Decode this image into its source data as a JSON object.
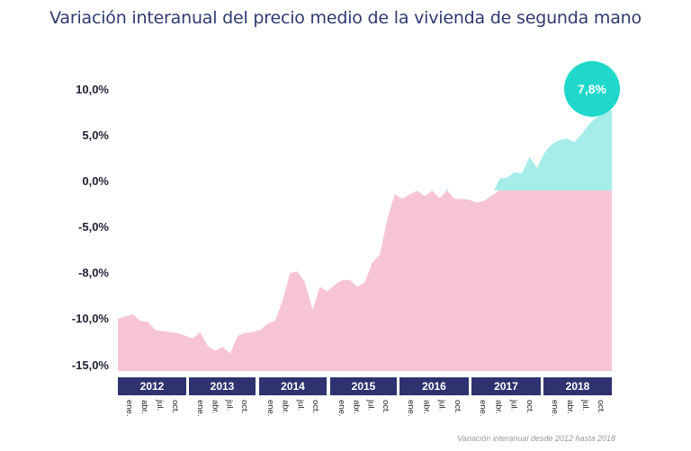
{
  "title": "Variación interanual del precio medio de la vivienda de segunda mano",
  "footnote": "Variación interanual desde 2012 hasta 2018",
  "badge": "7,8%",
  "colors": {
    "negative_area": "#f7c4d6",
    "positive_area": "#a6ece8",
    "badge": "#1fd8cb",
    "year_bar": "#2e3370",
    "title": "#2e3a6e"
  },
  "chart_data": {
    "type": "area",
    "title": "Variación interanual del precio medio de la vivienda de segunda mano",
    "y_tick_labels": [
      "10,0%",
      "5,0%",
      "0,0%",
      "-5,0%",
      "-8,0%",
      "-10,0%",
      "-15,0%"
    ],
    "y_tick_values": [
      10,
      5,
      0,
      -5,
      -8,
      -10,
      -15
    ],
    "years": [
      "2012",
      "2013",
      "2014",
      "2015",
      "2016",
      "2017",
      "2018"
    ],
    "month_labels": [
      "ene.",
      "abr.",
      "jul.",
      "oct."
    ],
    "series": [
      {
        "values": [
          -10.0,
          -9.9,
          -9.8,
          -10.2,
          -10.3,
          -11.2,
          -11.3,
          -11.4,
          -11.5,
          -11.8,
          -12.1,
          -11.4,
          -12.9,
          -13.4,
          -13.0,
          -13.7,
          -11.8,
          -11.5,
          -11.4,
          -11.2,
          -10.5,
          -10.2,
          -9.2,
          -8.0,
          -7.9,
          -8.4,
          -9.6,
          -8.6,
          -8.8,
          -8.5,
          -8.3,
          -8.3,
          -8.6,
          -8.4,
          -7.3,
          -6.8,
          -4.1,
          -1.4,
          -1.9,
          -1.4,
          -1.0,
          -1.6,
          -1.0,
          -1.8,
          -0.8,
          -1.9,
          -1.9,
          -2.0,
          -2.3,
          -2.1,
          -1.5,
          0.3,
          0.4,
          1.0,
          0.9,
          2.7,
          1.5,
          3.1,
          4.1,
          4.5,
          4.7,
          4.3,
          5.2,
          6.3,
          7.0,
          7.5,
          7.8
        ]
      }
    ],
    "latest_value": 7.8,
    "ylim": [
      -15,
      10
    ],
    "grid": false
  }
}
